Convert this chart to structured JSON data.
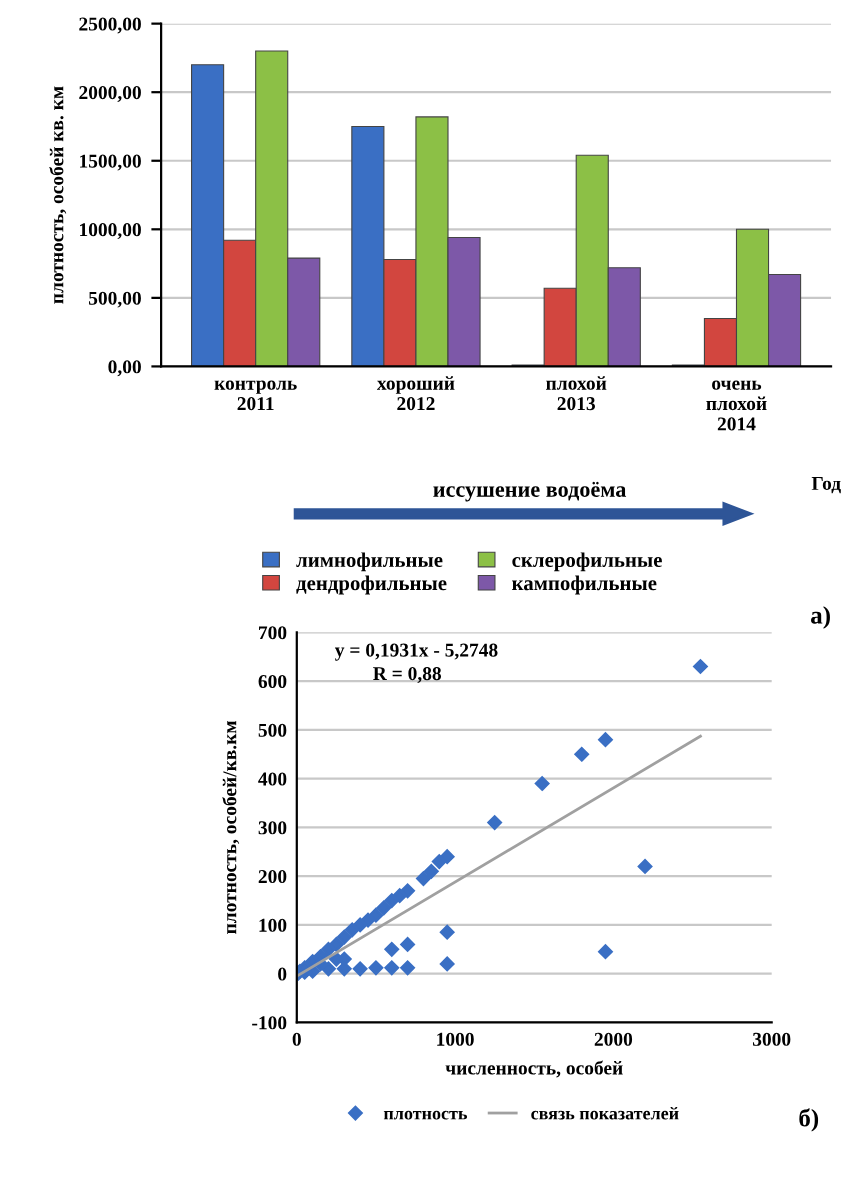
{
  "chart_data": [
    {
      "type": "bar",
      "ylabel": "плотность, особей кв. км",
      "categories": [
        "контроль\n2011",
        "хороший\n2012",
        "плохой\n2013",
        "очень\nплохой\n2014"
      ],
      "ylim": [
        0,
        2500
      ],
      "yticks": [
        {
          "value": 0,
          "label": "0,00"
        },
        {
          "value": 500,
          "label": "500,00"
        },
        {
          "value": 1000,
          "label": "1000,00"
        },
        {
          "value": 1500,
          "label": "1500,00"
        },
        {
          "value": 2000,
          "label": "2000,00"
        },
        {
          "value": 2500,
          "label": "2500,00"
        }
      ],
      "grid": "y",
      "legend": "bottom",
      "series": [
        {
          "name": "лимнофильные",
          "color": "#3a6fc4",
          "values": [
            2200,
            1750,
            10,
            10
          ]
        },
        {
          "name": "дендрофильные",
          "color": "#d2463f",
          "values": [
            920,
            780,
            570,
            350
          ]
        },
        {
          "name": "склерофильные",
          "color": "#8cc046",
          "values": [
            2300,
            1820,
            1540,
            1000
          ]
        },
        {
          "name": "кампофильные",
          "color": "#7d58a8",
          "values": [
            790,
            940,
            720,
            670
          ]
        }
      ],
      "annotations": [
        "иссушение водоёма",
        "Год",
        "а)"
      ]
    },
    {
      "type": "scatter",
      "xlabel": "численность, особей",
      "ylabel": "плотность, особей/кв.км",
      "xlim": [
        0,
        3000
      ],
      "xticks": [
        0,
        1000,
        2000,
        3000
      ],
      "ylim": [
        -100,
        700
      ],
      "yticks": [
        -100,
        0,
        100,
        200,
        300,
        400,
        500,
        600,
        700
      ],
      "grid": "y",
      "legend": "bottom",
      "series": [
        {
          "name": "плотность",
          "color": "#3a6fc4",
          "marker": "diamond",
          "x": [
            2550,
            1950,
            1800,
            1550,
            1250,
            2200,
            1950,
            950,
            950,
            700,
            600,
            300,
            950,
            900,
            850,
            800,
            700,
            650,
            600,
            550,
            500,
            450,
            400,
            350,
            300,
            250,
            200,
            150,
            100,
            50,
            20,
            100,
            200,
            300,
            400,
            500,
            600,
            700,
            150,
            250,
            50,
            10
          ],
          "values": [
            630,
            480,
            450,
            390,
            310,
            220,
            45,
            85,
            20,
            60,
            50,
            30,
            240,
            230,
            210,
            195,
            170,
            160,
            150,
            135,
            120,
            110,
            100,
            90,
            75,
            60,
            50,
            35,
            25,
            12,
            5,
            5,
            10,
            10,
            10,
            12,
            12,
            12,
            20,
            30,
            3,
            1
          ]
        },
        {
          "name": "связь показателей",
          "type": "line",
          "color": "#a0a0a0",
          "x": [
            0,
            2550
          ],
          "values": [
            -5,
            487
          ]
        }
      ],
      "annotations": [
        "y = 0,1931x - 5,2748",
        "R = 0,88",
        "б)"
      ]
    }
  ]
}
